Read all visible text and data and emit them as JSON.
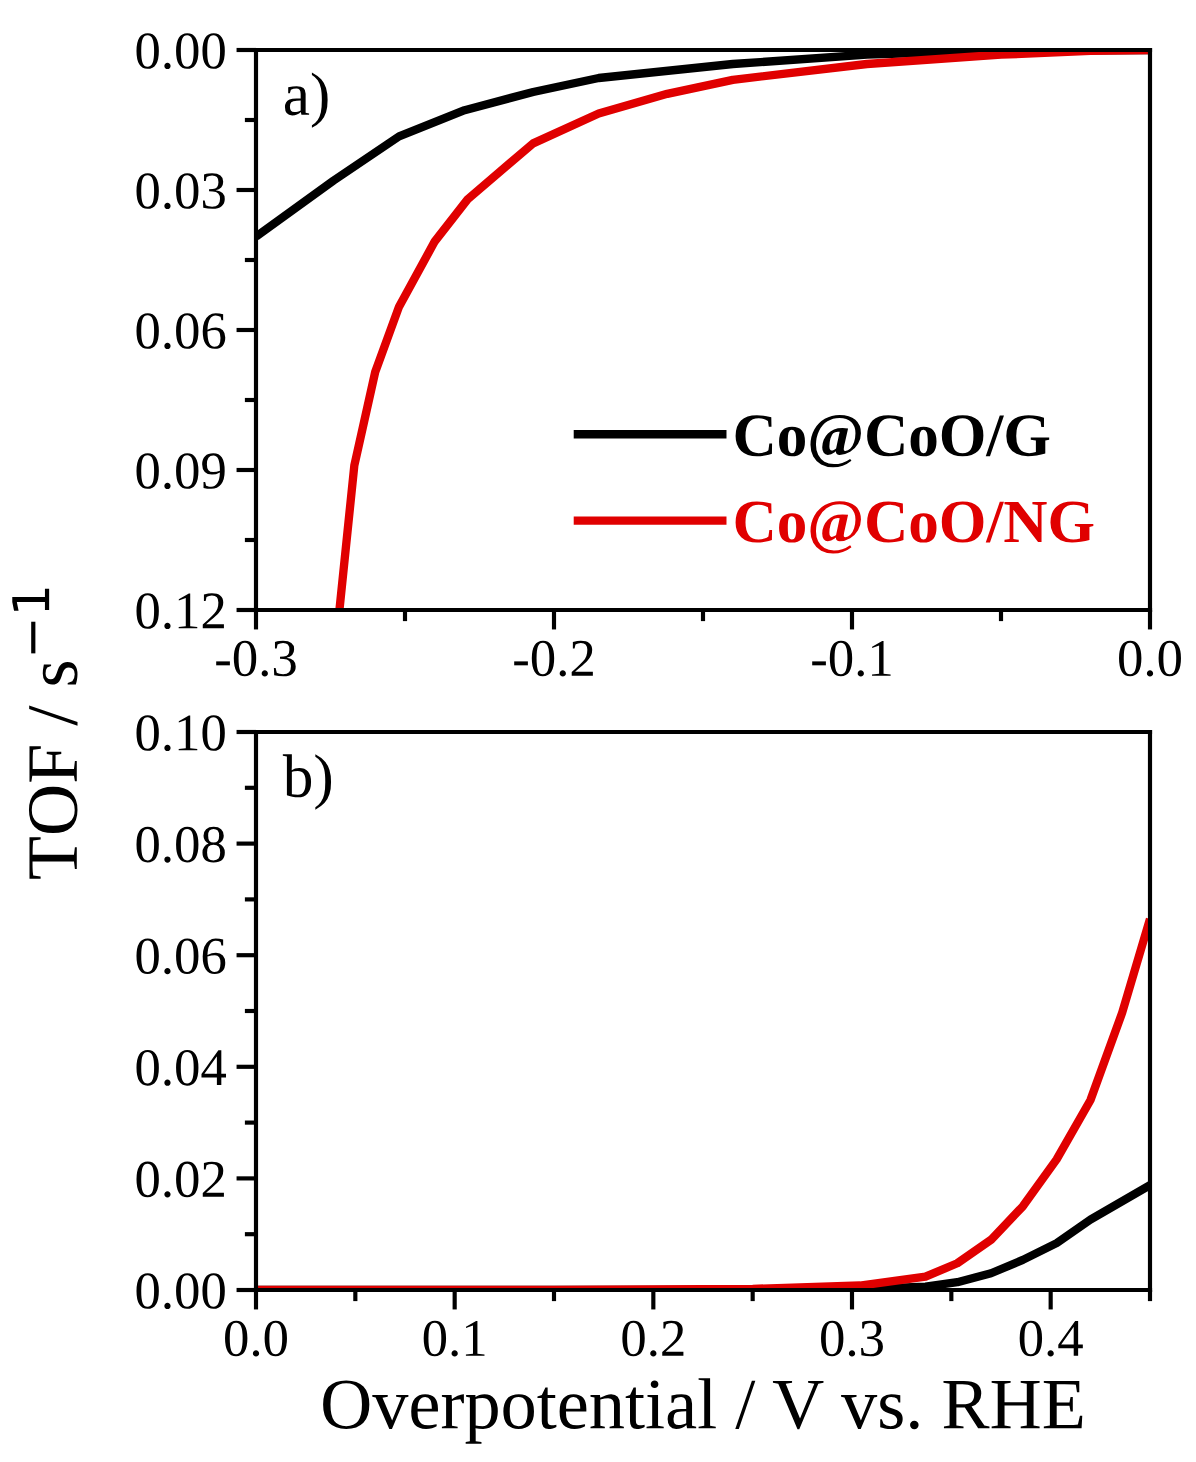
{
  "chart_data": [
    {
      "type": "line",
      "ylabel": "TOF / s$^{−1}$",
      "annotations": [
        "a)"
      ],
      "legend": "bottom right",
      "xlim": [
        -0.3,
        0.0
      ],
      "xticks": [
        {
          "value": -0.3,
          "label": "-0.3"
        },
        {
          "value": -0.2,
          "label": "-0.2"
        },
        {
          "value": -0.1,
          "label": "-0.1"
        },
        {
          "value": 0.0,
          "label": "0.0"
        }
      ],
      "ylim": [
        0.12,
        0.0
      ],
      "yticks": [
        {
          "value": 0.0,
          "label": "0.00"
        },
        {
          "value": 0.03,
          "label": "0.03"
        },
        {
          "value": 0.06,
          "label": "0.06"
        },
        {
          "value": 0.09,
          "label": "0.09"
        },
        {
          "value": 0.12,
          "label": "0.12"
        }
      ],
      "series": [
        {
          "name": "Co@CoO/G",
          "color": "#000000",
          "x": [
            -0.3,
            -0.274,
            -0.252,
            -0.23,
            -0.207,
            -0.185,
            -0.14,
            -0.095,
            -0.07,
            -0.04,
            0.0
          ],
          "values": [
            0.04,
            0.028,
            0.0185,
            0.0129,
            0.009,
            0.006,
            0.003,
            0.001,
            0.0005,
            0.0001,
            0.0
          ]
        },
        {
          "name": "Co@CoO/NG",
          "color": "#e00000",
          "x": [
            -0.272,
            -0.267,
            -0.26,
            -0.252,
            -0.24,
            -0.229,
            -0.207,
            -0.185,
            -0.162,
            -0.14,
            -0.095,
            -0.05,
            -0.02,
            0.0
          ],
          "values": [
            0.12,
            0.089,
            0.069,
            0.055,
            0.041,
            0.032,
            0.02,
            0.0136,
            0.0094,
            0.0064,
            0.003,
            0.001,
            0.0002,
            0.0
          ]
        }
      ]
    },
    {
      "type": "line",
      "xlabel": "Overpotential / V vs. RHE",
      "annotations": [
        "b)"
      ],
      "xlim": [
        0.0,
        0.45
      ],
      "xticks": [
        {
          "value": 0.0,
          "label": "0.0"
        },
        {
          "value": 0.1,
          "label": "0.1"
        },
        {
          "value": 0.2,
          "label": "0.2"
        },
        {
          "value": 0.3,
          "label": "0.3"
        },
        {
          "value": 0.4,
          "label": "0.4"
        }
      ],
      "ylim": [
        0.0,
        0.1
      ],
      "yticks": [
        {
          "value": 0.0,
          "label": "0.00"
        },
        {
          "value": 0.02,
          "label": "0.02"
        },
        {
          "value": 0.04,
          "label": "0.04"
        },
        {
          "value": 0.06,
          "label": "0.06"
        },
        {
          "value": 0.08,
          "label": "0.08"
        },
        {
          "value": 0.1,
          "label": "0.10"
        }
      ],
      "series": [
        {
          "color": "#000000",
          "x": [
            0.0,
            0.2,
            0.3,
            0.337,
            0.353,
            0.37,
            0.386,
            0.403,
            0.42,
            0.45
          ],
          "values": [
            0.0,
            0.0,
            0.0001,
            0.0006,
            0.0014,
            0.003,
            0.0054,
            0.0084,
            0.0126,
            0.0188
          ]
        },
        {
          "color": "#e00000",
          "x": [
            0.0,
            0.15,
            0.25,
            0.304,
            0.337,
            0.353,
            0.37,
            0.386,
            0.403,
            0.42,
            0.436,
            0.45
          ],
          "values": [
            0.0,
            0.0,
            0.0002,
            0.0008,
            0.0024,
            0.0048,
            0.009,
            0.015,
            0.0234,
            0.034,
            0.0497,
            0.0665
          ]
        }
      ]
    }
  ]
}
